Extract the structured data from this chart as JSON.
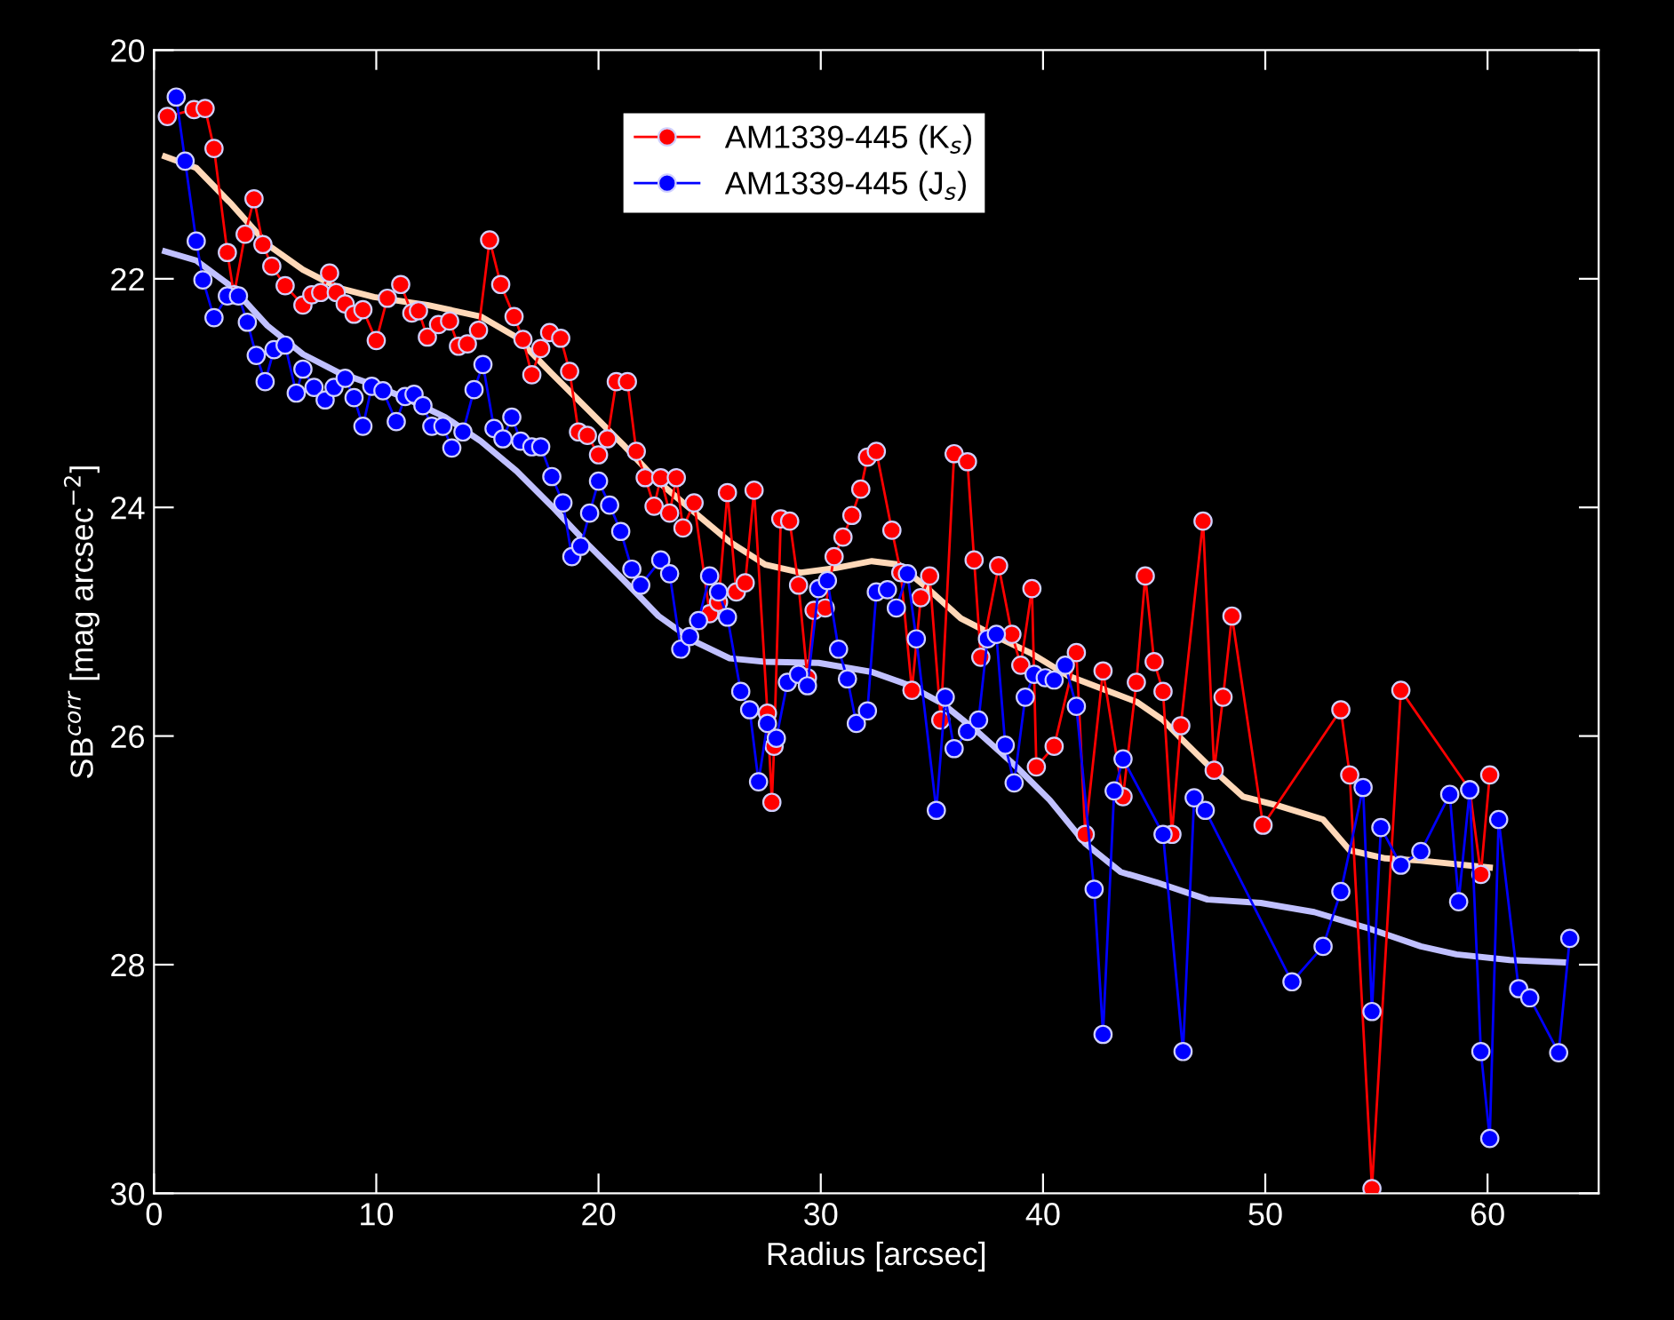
{
  "chart_data": {
    "type": "line",
    "xlabel": "Radius [arcsec]",
    "ylabel": "SB$^{corr}$ [mag arcsec$^{−2}$]",
    "xlim": [
      0,
      65
    ],
    "xticks": [
      0,
      10,
      20,
      30,
      40,
      50,
      60
    ],
    "ylim": [
      30,
      20
    ],
    "yticks": [
      20,
      22,
      24,
      26,
      28,
      30
    ],
    "grid": false,
    "legend": "top",
    "marker": "circle",
    "line_style": "solid",
    "series": [
      {
        "name": "AM1339-445 (K$_{s}$)",
        "color": "#ff0000",
        "x": [
          0.6,
          1.8,
          2.3,
          2.7,
          3.3,
          3.6,
          4.1,
          4.5,
          4.9,
          5.3,
          5.9,
          6.7,
          7.1,
          7.5,
          7.9,
          8.2,
          8.6,
          9.0,
          9.4,
          10.0,
          10.5,
          11.1,
          11.6,
          11.9,
          12.3,
          12.8,
          13.3,
          13.7,
          14.1,
          14.6,
          15.1,
          15.6,
          16.2,
          16.6,
          17.0,
          17.4,
          17.8,
          18.3,
          18.7,
          19.1,
          19.5,
          20.0,
          20.4,
          20.8,
          21.3,
          21.7,
          22.1,
          22.5,
          22.8,
          23.2,
          23.5,
          23.8,
          24.3,
          25.0,
          25.4,
          25.8,
          26.2,
          26.6,
          27.0,
          27.6,
          27.8,
          27.9,
          28.2,
          28.6,
          29.0,
          29.4,
          29.7,
          30.2,
          30.6,
          31.0,
          31.4,
          31.8,
          32.1,
          32.5,
          33.2,
          33.6,
          34.1,
          34.5,
          34.9,
          35.4,
          36.0,
          36.6,
          36.9,
          37.2,
          38.0,
          38.6,
          39.0,
          39.5,
          39.7,
          40.5,
          41.5,
          41.9,
          42.7,
          43.6,
          44.2,
          44.6,
          45.0,
          45.4,
          45.8,
          46.2,
          47.2,
          47.7,
          48.1,
          48.5,
          49.9,
          53.4,
          53.8,
          54.8,
          56.1,
          59.2,
          59.7,
          60.1
        ],
        "values": [
          20.58,
          20.52,
          20.51,
          20.86,
          21.77,
          22.14,
          21.61,
          21.3,
          21.7,
          21.89,
          22.06,
          22.23,
          22.14,
          22.12,
          21.95,
          22.12,
          22.22,
          22.31,
          22.27,
          22.54,
          22.17,
          22.05,
          22.3,
          22.28,
          22.51,
          22.4,
          22.37,
          22.59,
          22.57,
          22.45,
          21.66,
          22.05,
          22.33,
          22.53,
          22.84,
          22.61,
          22.47,
          22.52,
          22.81,
          23.34,
          23.37,
          23.54,
          23.4,
          22.9,
          22.9,
          23.51,
          23.74,
          23.99,
          23.74,
          24.05,
          23.74,
          24.18,
          23.96,
          24.93,
          24.83,
          23.87,
          24.74,
          24.66,
          23.85,
          25.8,
          26.58,
          26.09,
          24.1,
          24.12,
          24.68,
          25.49,
          24.9,
          24.88,
          24.43,
          24.26,
          24.07,
          23.84,
          23.56,
          23.51,
          24.2,
          24.57,
          25.6,
          24.79,
          24.6,
          25.86,
          23.53,
          23.6,
          24.46,
          25.31,
          24.51,
          25.11,
          25.38,
          24.71,
          26.27,
          26.09,
          25.27,
          26.86,
          25.43,
          26.53,
          25.53,
          24.6,
          25.35,
          25.61,
          26.86,
          25.91,
          24.12,
          26.3,
          25.66,
          24.95,
          26.78,
          25.77,
          26.34,
          29.96,
          25.6,
          26.47,
          27.21,
          26.34
        ]
      },
      {
        "name": "AM1339-445 (J$_{s}$)",
        "color": "#0000ff",
        "x": [
          1.0,
          1.4,
          1.9,
          2.2,
          2.7,
          3.3,
          3.8,
          4.2,
          4.6,
          5.0,
          5.4,
          5.9,
          6.4,
          6.7,
          7.2,
          7.7,
          8.1,
          8.6,
          9.0,
          9.4,
          9.8,
          10.3,
          10.9,
          11.3,
          11.7,
          12.1,
          12.5,
          13.0,
          13.4,
          13.9,
          14.4,
          14.8,
          15.3,
          15.7,
          16.1,
          16.5,
          17.0,
          17.4,
          17.9,
          18.4,
          18.8,
          19.2,
          19.6,
          20.0,
          20.5,
          21.0,
          21.5,
          21.9,
          22.8,
          23.2,
          23.7,
          24.1,
          24.5,
          25.0,
          25.4,
          25.8,
          26.4,
          26.8,
          27.2,
          27.6,
          28.0,
          28.5,
          29.0,
          29.4,
          29.9,
          30.3,
          30.8,
          31.2,
          31.6,
          32.1,
          32.5,
          33.0,
          33.4,
          33.9,
          34.3,
          35.2,
          35.6,
          36.0,
          36.6,
          37.1,
          37.5,
          37.9,
          38.3,
          38.7,
          39.2,
          39.6,
          40.1,
          40.5,
          41.0,
          41.5,
          42.3,
          42.7,
          43.2,
          43.6,
          45.4,
          46.3,
          46.8,
          47.3,
          51.2,
          52.6,
          53.4,
          54.4,
          54.8,
          55.2,
          56.1,
          57.0,
          58.3,
          58.7,
          59.2,
          59.7,
          60.1,
          60.5,
          61.4,
          61.9,
          63.2,
          63.7
        ],
        "values": [
          20.41,
          20.97,
          21.67,
          22.01,
          22.34,
          22.15,
          22.15,
          22.38,
          22.67,
          22.9,
          22.62,
          22.58,
          23.0,
          22.79,
          22.95,
          23.06,
          22.95,
          22.87,
          23.04,
          23.29,
          22.94,
          22.98,
          23.25,
          23.03,
          23.01,
          23.11,
          23.29,
          23.29,
          23.48,
          23.34,
          22.97,
          22.75,
          23.31,
          23.4,
          23.21,
          23.42,
          23.47,
          23.47,
          23.73,
          23.96,
          24.43,
          24.34,
          24.05,
          23.77,
          23.98,
          24.21,
          24.54,
          24.68,
          24.46,
          24.58,
          25.24,
          25.13,
          24.99,
          24.6,
          24.74,
          24.96,
          25.61,
          25.77,
          26.4,
          25.89,
          26.02,
          25.53,
          25.46,
          25.56,
          24.71,
          24.64,
          25.24,
          25.5,
          25.89,
          25.78,
          24.74,
          24.72,
          24.88,
          24.58,
          25.15,
          26.65,
          25.66,
          26.11,
          25.96,
          25.86,
          25.15,
          25.11,
          26.08,
          26.41,
          25.66,
          25.46,
          25.49,
          25.51,
          25.38,
          25.74,
          27.34,
          28.61,
          26.48,
          26.2,
          26.86,
          28.76,
          26.54,
          26.65,
          28.15,
          27.84,
          27.36,
          26.45,
          28.41,
          26.8,
          27.13,
          27.01,
          26.51,
          27.45,
          26.47,
          28.76,
          29.52,
          26.73,
          28.21,
          28.29,
          28.77,
          27.77
        ]
      },
      {
        "color": "#ffd8b8",
        "marker": "none",
        "x": [
          0.5,
          1.9,
          3.5,
          5.1,
          6.7,
          8.3,
          9.9,
          12.3,
          14.7,
          16.3,
          17.9,
          19.5,
          21.1,
          22.6,
          24.3,
          25.9,
          27.5,
          29.1,
          30.7,
          32.3,
          33.5,
          34.7,
          36.3,
          37.9,
          39.5,
          41.1,
          42.7,
          44.2,
          45.4,
          46.2,
          47.4,
          49.0,
          50.6,
          52.6,
          53.8,
          55.4,
          57.0,
          60.1
        ],
        "values": [
          20.93,
          21.03,
          21.35,
          21.7,
          21.92,
          22.08,
          22.16,
          22.23,
          22.33,
          22.51,
          22.83,
          23.14,
          23.45,
          23.76,
          24.04,
          24.3,
          24.5,
          24.57,
          24.53,
          24.47,
          24.5,
          24.69,
          24.97,
          25.13,
          25.28,
          25.47,
          25.59,
          25.7,
          25.86,
          26.02,
          26.25,
          26.53,
          26.61,
          26.73,
          27.0,
          27.07,
          27.09,
          27.15
        ]
      },
      {
        "color": "#c0c0ff",
        "marker": "none",
        "x": [
          0.5,
          1.9,
          3.5,
          5.1,
          6.7,
          8.3,
          9.9,
          11.5,
          13.1,
          14.7,
          16.3,
          17.9,
          19.5,
          21.1,
          22.7,
          24.3,
          25.9,
          27.5,
          29.9,
          32.3,
          33.9,
          35.5,
          37.1,
          38.7,
          40.3,
          41.9,
          43.5,
          45.1,
          47.4,
          49.8,
          52.2,
          54.6,
          57.0,
          58.6,
          61.0,
          63.4
        ],
        "values": [
          21.76,
          21.84,
          22.07,
          22.41,
          22.66,
          22.82,
          22.93,
          23.06,
          23.21,
          23.42,
          23.68,
          23.99,
          24.32,
          24.63,
          24.95,
          25.17,
          25.32,
          25.35,
          25.36,
          25.44,
          25.55,
          25.72,
          25.97,
          26.25,
          26.56,
          26.94,
          27.19,
          27.28,
          27.43,
          27.46,
          27.54,
          27.68,
          27.84,
          27.91,
          27.96,
          27.98
        ]
      }
    ]
  }
}
